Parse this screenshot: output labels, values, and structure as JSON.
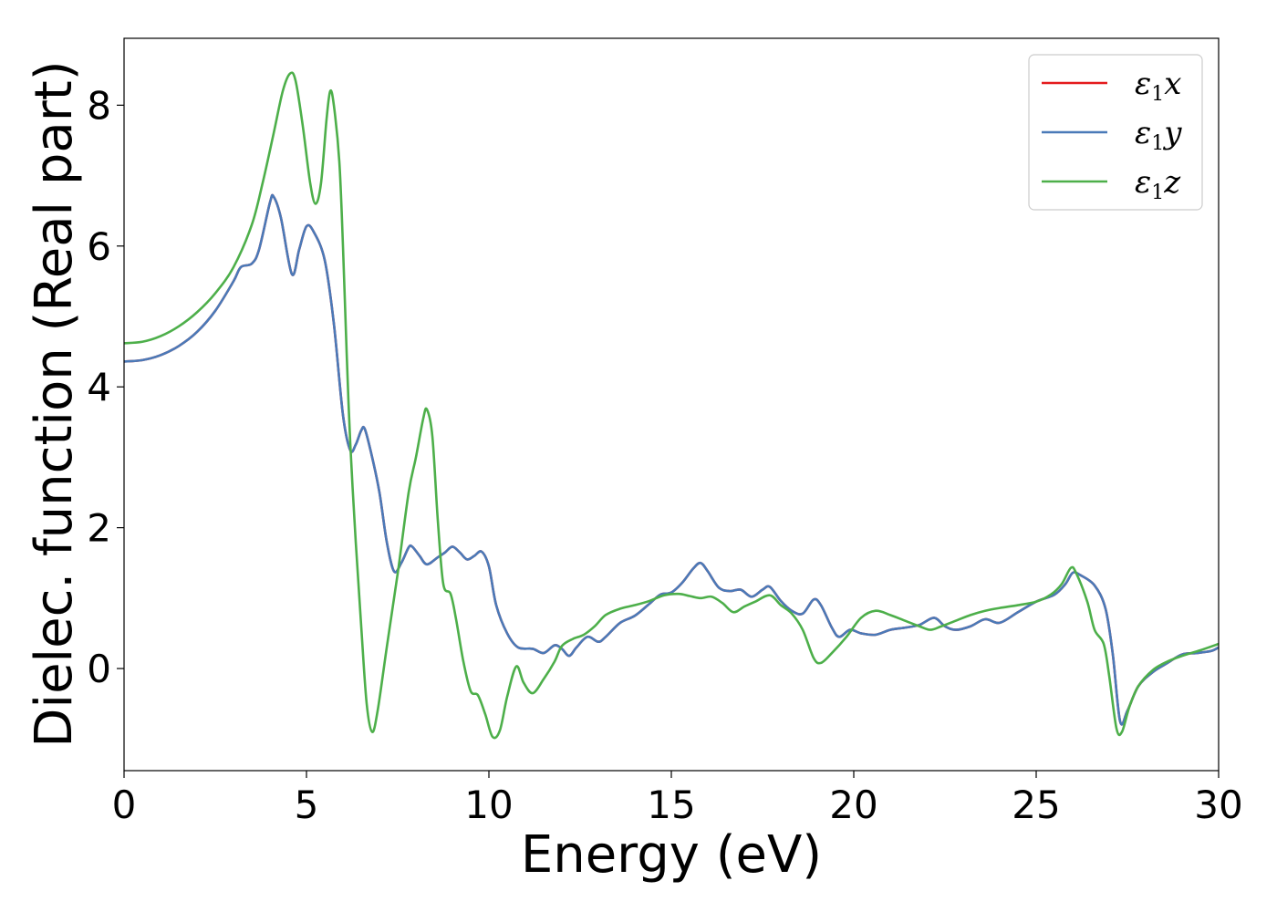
{
  "chart_data": {
    "type": "line",
    "xlabel": "Energy (eV)",
    "ylabel": "Dielec. function (Real part)",
    "xlim": [
      0,
      30
    ],
    "ylim": [
      -1.45,
      8.95
    ],
    "grid": false,
    "legend_position": "top-right",
    "x_ticks": [
      0,
      5,
      10,
      15,
      20,
      25,
      30
    ],
    "y_ticks": [
      0,
      2,
      4,
      6,
      8
    ],
    "series": [
      {
        "name": "ε1x",
        "legend": {
          "base": "ε",
          "sub": "1",
          "axis": "x"
        },
        "color": "#e41a1c",
        "hidden_behind": "ε1y",
        "points": []
      },
      {
        "name": "ε1y",
        "legend": {
          "base": "ε",
          "sub": "1",
          "axis": "y"
        },
        "color": "#4a7ab8",
        "points": [
          [
            0,
            4.36
          ],
          [
            0.5,
            4.38
          ],
          [
            1.0,
            4.45
          ],
          [
            1.5,
            4.58
          ],
          [
            2.0,
            4.78
          ],
          [
            2.5,
            5.08
          ],
          [
            3.0,
            5.5
          ],
          [
            3.2,
            5.7
          ],
          [
            3.5,
            5.75
          ],
          [
            3.7,
            5.95
          ],
          [
            4.0,
            6.62
          ],
          [
            4.1,
            6.7
          ],
          [
            4.3,
            6.4
          ],
          [
            4.6,
            5.6
          ],
          [
            4.8,
            5.95
          ],
          [
            5.0,
            6.28
          ],
          [
            5.2,
            6.2
          ],
          [
            5.5,
            5.8
          ],
          [
            5.75,
            4.9
          ],
          [
            6.0,
            3.6
          ],
          [
            6.2,
            3.1
          ],
          [
            6.35,
            3.18
          ],
          [
            6.5,
            3.38
          ],
          [
            6.6,
            3.4
          ],
          [
            6.8,
            3.0
          ],
          [
            7.0,
            2.5
          ],
          [
            7.2,
            1.8
          ],
          [
            7.4,
            1.38
          ],
          [
            7.6,
            1.5
          ],
          [
            7.8,
            1.72
          ],
          [
            7.9,
            1.73
          ],
          [
            8.1,
            1.6
          ],
          [
            8.3,
            1.48
          ],
          [
            8.6,
            1.58
          ],
          [
            8.8,
            1.65
          ],
          [
            9.0,
            1.73
          ],
          [
            9.2,
            1.65
          ],
          [
            9.4,
            1.55
          ],
          [
            9.6,
            1.6
          ],
          [
            9.8,
            1.66
          ],
          [
            10.0,
            1.45
          ],
          [
            10.2,
            0.9
          ],
          [
            10.5,
            0.5
          ],
          [
            10.8,
            0.3
          ],
          [
            11.2,
            0.28
          ],
          [
            11.5,
            0.22
          ],
          [
            11.8,
            0.33
          ],
          [
            12.0,
            0.28
          ],
          [
            12.2,
            0.18
          ],
          [
            12.4,
            0.3
          ],
          [
            12.7,
            0.45
          ],
          [
            13.0,
            0.38
          ],
          [
            13.2,
            0.45
          ],
          [
            13.6,
            0.65
          ],
          [
            14.0,
            0.75
          ],
          [
            14.4,
            0.92
          ],
          [
            14.7,
            1.05
          ],
          [
            15.0,
            1.08
          ],
          [
            15.3,
            1.22
          ],
          [
            15.6,
            1.42
          ],
          [
            15.8,
            1.5
          ],
          [
            16.0,
            1.38
          ],
          [
            16.3,
            1.15
          ],
          [
            16.6,
            1.1
          ],
          [
            16.9,
            1.12
          ],
          [
            17.2,
            1.02
          ],
          [
            17.5,
            1.12
          ],
          [
            17.7,
            1.16
          ],
          [
            18.0,
            0.96
          ],
          [
            18.3,
            0.82
          ],
          [
            18.6,
            0.78
          ],
          [
            18.9,
            0.98
          ],
          [
            19.1,
            0.9
          ],
          [
            19.4,
            0.58
          ],
          [
            19.6,
            0.45
          ],
          [
            19.9,
            0.55
          ],
          [
            20.2,
            0.5
          ],
          [
            20.6,
            0.48
          ],
          [
            21.0,
            0.55
          ],
          [
            21.4,
            0.58
          ],
          [
            21.8,
            0.62
          ],
          [
            22.2,
            0.72
          ],
          [
            22.5,
            0.6
          ],
          [
            22.8,
            0.55
          ],
          [
            23.2,
            0.6
          ],
          [
            23.6,
            0.7
          ],
          [
            24.0,
            0.65
          ],
          [
            24.5,
            0.8
          ],
          [
            25.0,
            0.95
          ],
          [
            25.5,
            1.05
          ],
          [
            25.8,
            1.2
          ],
          [
            26.0,
            1.36
          ],
          [
            26.2,
            1.33
          ],
          [
            26.6,
            1.18
          ],
          [
            26.9,
            0.85
          ],
          [
            27.1,
            0.2
          ],
          [
            27.3,
            -0.75
          ],
          [
            27.5,
            -0.6
          ],
          [
            27.8,
            -0.25
          ],
          [
            28.2,
            -0.05
          ],
          [
            28.6,
            0.08
          ],
          [
            29.0,
            0.2
          ],
          [
            29.4,
            0.22
          ],
          [
            29.8,
            0.25
          ],
          [
            30.0,
            0.3
          ]
        ]
      },
      {
        "name": "ε1z",
        "legend": {
          "base": "ε",
          "sub": "1",
          "axis": "z"
        },
        "color": "#4daf4a",
        "points": [
          [
            0,
            4.62
          ],
          [
            0.5,
            4.64
          ],
          [
            1.0,
            4.72
          ],
          [
            1.5,
            4.86
          ],
          [
            2.0,
            5.06
          ],
          [
            2.5,
            5.33
          ],
          [
            3.0,
            5.7
          ],
          [
            3.5,
            6.3
          ],
          [
            3.8,
            6.9
          ],
          [
            4.1,
            7.6
          ],
          [
            4.35,
            8.2
          ],
          [
            4.55,
            8.45
          ],
          [
            4.7,
            8.35
          ],
          [
            4.9,
            7.7
          ],
          [
            5.1,
            6.9
          ],
          [
            5.25,
            6.6
          ],
          [
            5.4,
            6.9
          ],
          [
            5.55,
            7.8
          ],
          [
            5.65,
            8.2
          ],
          [
            5.75,
            8.0
          ],
          [
            5.9,
            7.2
          ],
          [
            6.0,
            6.0
          ],
          [
            6.1,
            4.5
          ],
          [
            6.2,
            3.2
          ],
          [
            6.35,
            1.8
          ],
          [
            6.5,
            0.6
          ],
          [
            6.65,
            -0.5
          ],
          [
            6.8,
            -0.9
          ],
          [
            6.95,
            -0.6
          ],
          [
            7.2,
            0.3
          ],
          [
            7.5,
            1.35
          ],
          [
            7.8,
            2.5
          ],
          [
            8.0,
            3.0
          ],
          [
            8.2,
            3.55
          ],
          [
            8.3,
            3.68
          ],
          [
            8.45,
            3.3
          ],
          [
            8.6,
            2.1
          ],
          [
            8.75,
            1.2
          ],
          [
            8.95,
            1.06
          ],
          [
            9.1,
            0.7
          ],
          [
            9.3,
            0.1
          ],
          [
            9.5,
            -0.32
          ],
          [
            9.7,
            -0.38
          ],
          [
            9.9,
            -0.65
          ],
          [
            10.1,
            -0.97
          ],
          [
            10.3,
            -0.88
          ],
          [
            10.5,
            -0.4
          ],
          [
            10.75,
            0.03
          ],
          [
            10.95,
            -0.2
          ],
          [
            11.2,
            -0.35
          ],
          [
            11.5,
            -0.15
          ],
          [
            11.8,
            0.1
          ],
          [
            12.0,
            0.32
          ],
          [
            12.3,
            0.42
          ],
          [
            12.6,
            0.48
          ],
          [
            12.9,
            0.6
          ],
          [
            13.2,
            0.76
          ],
          [
            13.6,
            0.85
          ],
          [
            14.0,
            0.9
          ],
          [
            14.4,
            0.96
          ],
          [
            14.8,
            1.04
          ],
          [
            15.2,
            1.06
          ],
          [
            15.5,
            1.03
          ],
          [
            15.8,
            1.0
          ],
          [
            16.1,
            1.02
          ],
          [
            16.4,
            0.93
          ],
          [
            16.7,
            0.8
          ],
          [
            17.0,
            0.88
          ],
          [
            17.3,
            0.95
          ],
          [
            17.7,
            1.04
          ],
          [
            18.0,
            0.9
          ],
          [
            18.3,
            0.78
          ],
          [
            18.6,
            0.55
          ],
          [
            18.9,
            0.15
          ],
          [
            19.1,
            0.08
          ],
          [
            19.4,
            0.22
          ],
          [
            19.8,
            0.45
          ],
          [
            20.2,
            0.72
          ],
          [
            20.6,
            0.82
          ],
          [
            21.0,
            0.76
          ],
          [
            21.4,
            0.68
          ],
          [
            21.8,
            0.6
          ],
          [
            22.1,
            0.55
          ],
          [
            22.4,
            0.6
          ],
          [
            22.8,
            0.68
          ],
          [
            23.2,
            0.76
          ],
          [
            23.6,
            0.82
          ],
          [
            24.0,
            0.86
          ],
          [
            24.5,
            0.9
          ],
          [
            25.0,
            0.95
          ],
          [
            25.4,
            1.05
          ],
          [
            25.7,
            1.2
          ],
          [
            25.95,
            1.43
          ],
          [
            26.1,
            1.35
          ],
          [
            26.4,
            0.95
          ],
          [
            26.6,
            0.55
          ],
          [
            26.85,
            0.35
          ],
          [
            27.0,
            -0.1
          ],
          [
            27.2,
            -0.85
          ],
          [
            27.35,
            -0.9
          ],
          [
            27.55,
            -0.55
          ],
          [
            27.8,
            -0.25
          ],
          [
            28.2,
            -0.02
          ],
          [
            28.6,
            0.1
          ],
          [
            29.0,
            0.18
          ],
          [
            29.5,
            0.26
          ],
          [
            30.0,
            0.35
          ]
        ]
      }
    ]
  }
}
